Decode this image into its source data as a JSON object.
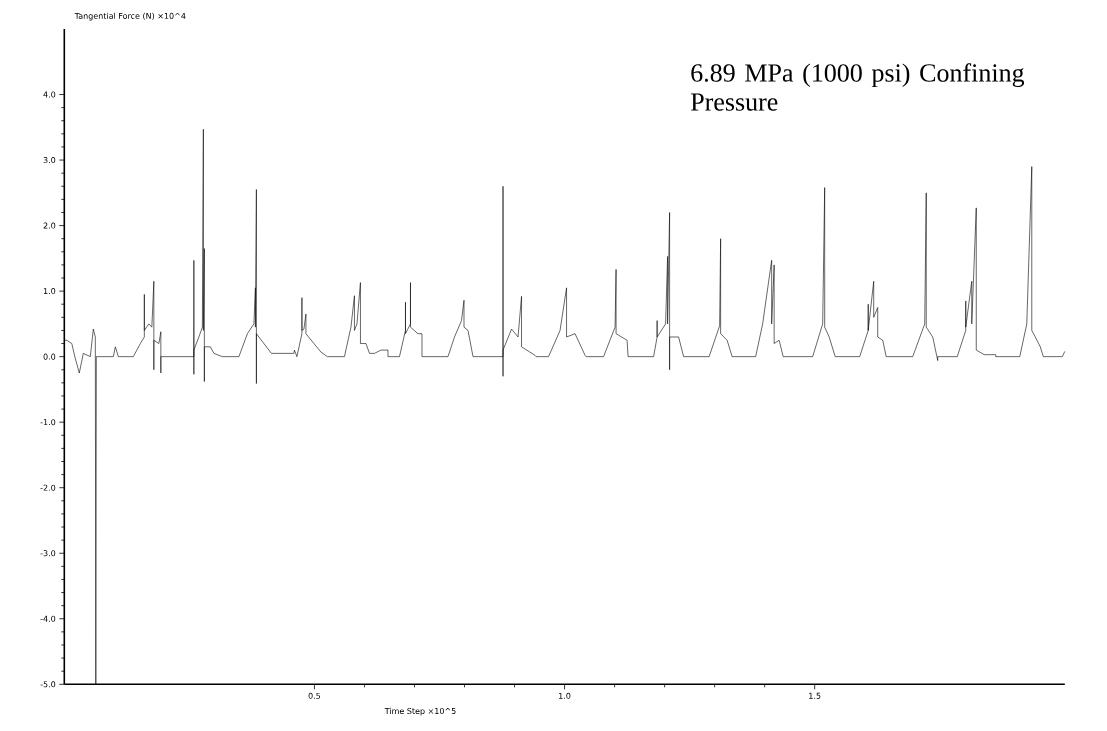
{
  "chart_data": {
    "type": "line",
    "xlabel": "Time Step ×10^5",
    "ylabel": "Tangential Force (N) ×10^4",
    "annotations": [
      "6.89 MPa (1000 psi) Confining Pressure"
    ],
    "xlim": [
      0,
      2.0
    ],
    "ylim": [
      -5.0,
      5.0
    ],
    "xticks": [
      0.5,
      {
        "value": 1.0,
        "label": "1.0"
      },
      1.5
    ],
    "yticks": [
      {
        "value": -5,
        "label": "-5.0"
      },
      {
        "value": -4,
        "label": "-4.0"
      },
      {
        "value": -3,
        "label": "-3.0"
      },
      {
        "value": -2,
        "label": "-2.0"
      },
      {
        "value": -1,
        "label": "-1.0"
      },
      {
        "value": 0,
        "label": "0.0"
      },
      {
        "value": 1,
        "label": "1.0"
      },
      {
        "value": 2,
        "label": "2.0"
      },
      {
        "value": 3,
        "label": "3.0"
      },
      {
        "value": 4,
        "label": "4.0"
      }
    ],
    "marker": "none",
    "line_style": "solid",
    "series": [
      {
        "color": "#000000",
        "x": [
          0.0,
          0.005,
          0.015,
          0.021,
          0.03,
          0.038,
          0.052,
          0.058,
          0.062,
          0.063,
          0.064,
          0.098,
          0.102,
          0.108,
          0.138,
          0.152,
          0.16,
          0.16,
          0.16,
          0.169,
          0.175,
          0.179,
          0.179,
          0.179,
          0.189,
          0.193,
          0.193,
          0.193,
          0.205,
          0.259,
          0.259,
          0.259,
          0.259,
          0.269,
          0.276,
          0.278,
          0.278,
          0.28,
          0.28,
          0.28,
          0.292,
          0.299,
          0.316,
          0.349,
          0.366,
          0.379,
          0.382,
          0.382,
          0.384,
          0.384,
          0.384,
          0.399,
          0.414,
          0.459,
          0.46,
          0.465,
          0.475,
          0.475,
          0.475,
          0.479,
          0.483,
          0.483,
          0.499,
          0.513,
          0.526,
          0.56,
          0.573,
          0.58,
          0.58,
          0.585,
          0.592,
          0.592,
          0.603,
          0.61,
          0.62,
          0.633,
          0.647,
          0.647,
          0.67,
          0.682,
          0.682,
          0.682,
          0.692,
          0.692,
          0.692,
          0.707,
          0.715,
          0.715,
          0.767,
          0.78,
          0.794,
          0.799,
          0.799,
          0.807,
          0.817,
          0.877,
          0.877,
          0.877,
          0.877,
          0.894,
          0.907,
          0.914,
          0.914,
          0.941,
          0.943,
          0.968,
          0.991,
          1.004,
          1.004,
          1.021,
          1.041,
          1.043,
          1.078,
          1.101,
          1.103,
          1.103,
          1.125,
          1.127,
          1.178,
          1.185,
          1.185,
          1.185,
          1.202,
          1.206,
          1.206,
          1.21,
          1.21,
          1.21,
          1.228,
          1.238,
          1.289,
          1.31,
          1.312,
          1.312,
          1.325,
          1.335,
          1.382,
          1.396,
          1.414,
          1.414,
          1.419,
          1.419,
          1.429,
          1.437,
          1.496,
          1.516,
          1.52,
          1.52,
          1.529,
          1.541,
          1.59,
          1.607,
          1.607,
          1.607,
          1.618,
          1.618,
          1.626,
          1.626,
          1.636,
          1.643,
          1.696,
          1.72,
          1.723,
          1.723,
          1.736,
          1.746,
          1.746,
          1.785,
          1.802,
          1.802,
          1.802,
          1.814,
          1.814,
          1.823,
          1.823,
          1.839,
          1.862,
          1.862,
          1.91,
          1.924,
          1.934,
          1.934,
          1.941,
          1.951,
          1.957,
          1.995,
          2.0
        ],
        "values": [
          0.25,
          0.25,
          0.2,
          0,
          -0.25,
          0.05,
          0,
          0.42,
          0.3,
          -5.0,
          0,
          0,
          0.15,
          0,
          0,
          0.2,
          0.3,
          0.95,
          0.4,
          0.5,
          0.45,
          1.15,
          -0.2,
          0.25,
          0.2,
          0.38,
          -0.25,
          0,
          0,
          0,
          1.47,
          -0.27,
          0.1,
          0.3,
          0.45,
          3.47,
          0.4,
          1.65,
          -0.38,
          0.15,
          0.15,
          0.05,
          0,
          0,
          0.35,
          0.5,
          1.05,
          0.45,
          2.55,
          -0.41,
          0.35,
          0.2,
          0.05,
          0.05,
          0.1,
          0,
          0.35,
          0.9,
          0.4,
          0.42,
          0.65,
          0.35,
          0.2,
          0.07,
          0,
          0,
          0.45,
          0.93,
          0.4,
          0.5,
          1.13,
          0.2,
          0.2,
          0.05,
          0.05,
          0.1,
          0.1,
          0,
          0,
          0.4,
          0.83,
          0.35,
          0.5,
          1.13,
          0.45,
          0.35,
          0.35,
          0,
          0,
          0.3,
          0.55,
          0.86,
          0.45,
          0.4,
          0,
          0,
          2.6,
          -0.3,
          0.1,
          0.42,
          0.3,
          0.92,
          0.15,
          0.02,
          0,
          0,
          0.4,
          1.05,
          0.3,
          0.35,
          0.02,
          0,
          0,
          0.45,
          1.33,
          0.35,
          0.25,
          0,
          0,
          0.3,
          0.55,
          0.3,
          0.5,
          1.53,
          0.5,
          2.2,
          -0.2,
          0.3,
          0.3,
          0,
          0,
          0.47,
          1.8,
          0.35,
          0.25,
          0,
          0,
          0.5,
          1.47,
          0.5,
          1.4,
          0.2,
          0.25,
          0,
          0,
          0.5,
          2.58,
          0.45,
          0.3,
          0,
          0,
          0.4,
          0.8,
          0.4,
          1.15,
          0.6,
          0.75,
          0.3,
          0.25,
          0,
          0,
          0.5,
          2.5,
          0.45,
          0.3,
          -0.06,
          0,
          0,
          0.4,
          0.85,
          0.45,
          1.15,
          0.5,
          2.27,
          0.1,
          0.03,
          0.03,
          0,
          0,
          0.5,
          2.9,
          0.4,
          0.3,
          0.15,
          0,
          0,
          0.08
        ]
      }
    ]
  }
}
